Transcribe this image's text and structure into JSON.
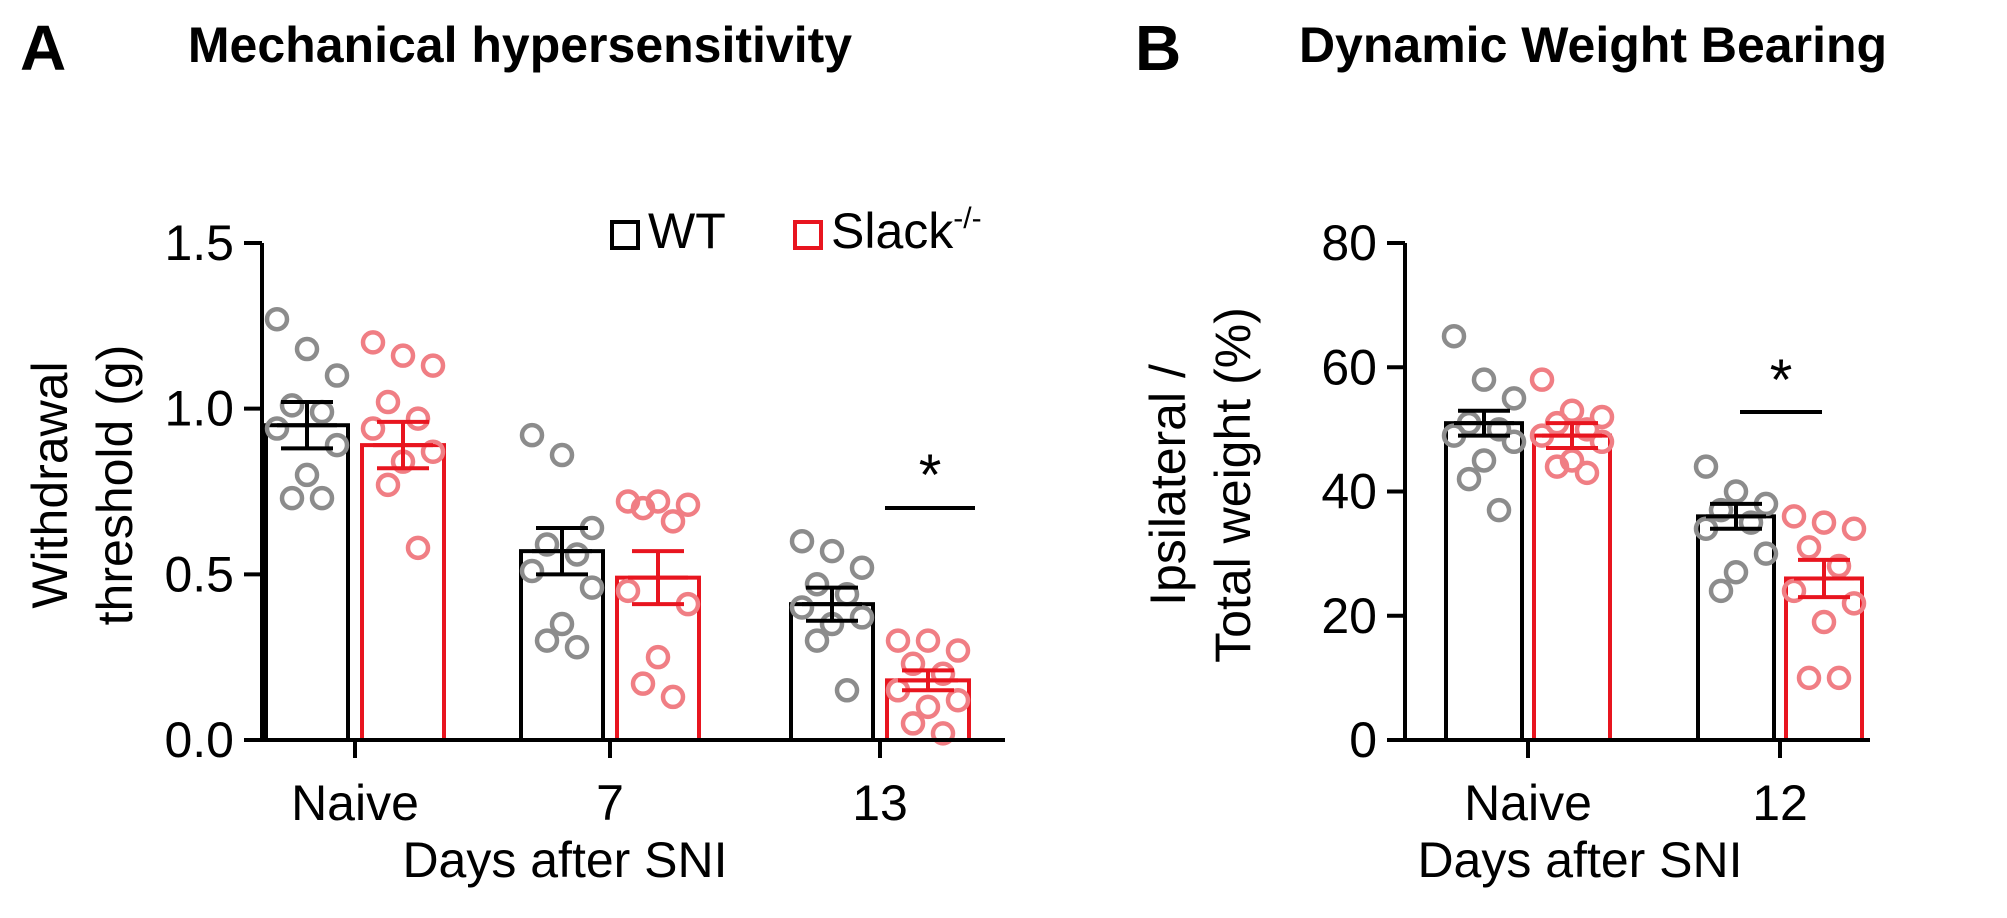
{
  "chart_data": [
    {
      "panel": "A",
      "type": "bar",
      "title": "Mechanical hypersensitivity",
      "xlabel": "Days after SNI",
      "ylabel": [
        "Withdrawal",
        "threshold (g)"
      ],
      "ylim": [
        0,
        1.5
      ],
      "yticks": [
        "0.0",
        "0.5",
        "1.0",
        "1.5"
      ],
      "yticks_values": [
        0,
        0.5,
        1.0,
        1.5
      ],
      "categories": [
        "Naive",
        "7",
        "13"
      ],
      "legend": {
        "position": "top-right",
        "labels": [
          "WT",
          "Slack"
        ],
        "superscript": "-/-"
      },
      "series": [
        {
          "name": "WT",
          "color": "#000000",
          "point_color": "#8c8c8c",
          "values": [
            0.95,
            0.57,
            0.41
          ],
          "sem": [
            0.07,
            0.07,
            0.05
          ],
          "points": [
            [
              1.27,
              1.18,
              1.1,
              1.01,
              0.99,
              0.94,
              0.89,
              0.8,
              0.73,
              0.73
            ],
            [
              0.92,
              0.86,
              0.64,
              0.59,
              0.56,
              0.51,
              0.46,
              0.35,
              0.3,
              0.28
            ],
            [
              0.6,
              0.57,
              0.52,
              0.47,
              0.44,
              0.4,
              0.37,
              0.35,
              0.3,
              0.15
            ]
          ]
        },
        {
          "name": "Slack-/-",
          "color": "#e8151f",
          "point_color": "#f07e84",
          "values": [
            0.89,
            0.49,
            0.18
          ],
          "sem": [
            0.07,
            0.08,
            0.03
          ],
          "points": [
            [
              1.2,
              1.16,
              1.13,
              1.02,
              0.97,
              0.94,
              0.87,
              0.84,
              0.77,
              0.58
            ],
            [
              0.72,
              0.72,
              0.71,
              0.7,
              0.66,
              0.45,
              0.41,
              0.25,
              0.17,
              0.13
            ],
            [
              0.3,
              0.3,
              0.27,
              0.23,
              0.2,
              0.15,
              0.12,
              0.1,
              0.05,
              0.02
            ]
          ]
        }
      ],
      "annotations": [
        {
          "category": "13",
          "text": "*"
        }
      ]
    },
    {
      "panel": "B",
      "type": "bar",
      "title": "Dynamic Weight Bearing",
      "xlabel": "Days after SNI",
      "ylabel": [
        "Ipsilateral /",
        "Total weight (%)"
      ],
      "ylim": [
        0,
        80
      ],
      "yticks": [
        "0",
        "20",
        "40",
        "60",
        "80"
      ],
      "yticks_values": [
        0,
        20,
        40,
        60,
        80
      ],
      "categories": [
        "Naive",
        "12"
      ],
      "series": [
        {
          "name": "WT",
          "color": "#000000",
          "point_color": "#8c8c8c",
          "values": [
            51,
            36
          ],
          "sem": [
            2,
            2
          ],
          "points": [
            [
              65,
              58,
              55,
              51,
              50,
              49,
              48,
              45,
              42,
              37
            ],
            [
              44,
              40,
              38,
              37,
              35,
              34,
              30,
              27,
              24
            ]
          ]
        },
        {
          "name": "Slack-/-",
          "color": "#e8151f",
          "point_color": "#f07e84",
          "values": [
            49,
            26
          ],
          "sem": [
            2,
            3
          ],
          "points": [
            [
              58,
              53,
              52,
              51,
              50,
              49,
              48,
              45,
              44,
              43
            ],
            [
              36,
              35,
              34,
              31,
              28,
              24,
              22,
              19,
              10,
              10
            ]
          ]
        }
      ],
      "annotations": [
        {
          "category": "12",
          "text": "*"
        }
      ]
    }
  ]
}
